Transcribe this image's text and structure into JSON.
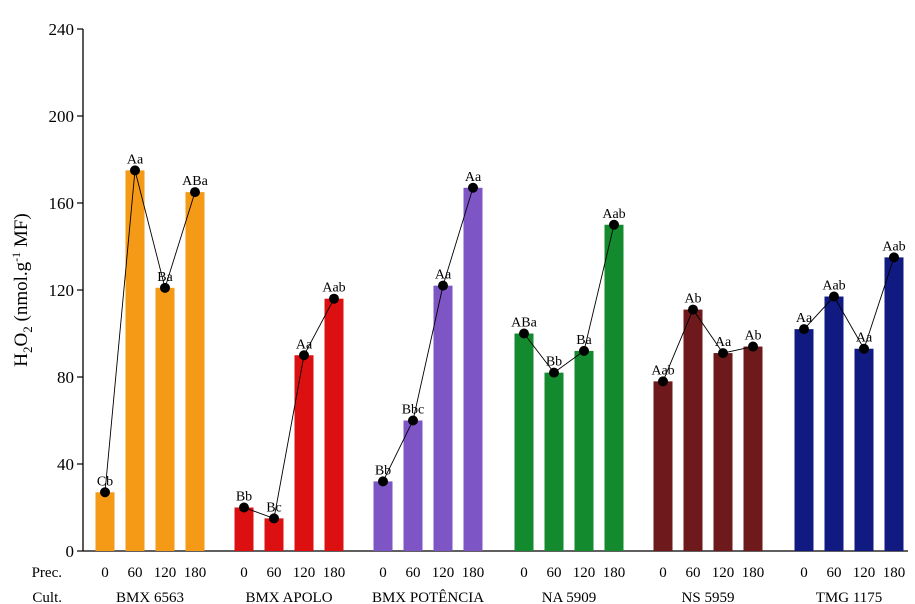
{
  "chart_data": {
    "type": "bar",
    "ylabel": {
      "main": "H",
      "sub1": "2",
      "mid": "O",
      "sub2": "2",
      "rest": " (nmol.g",
      "sup": "-1",
      "tail": " MF)"
    },
    "ylim": [
      0,
      240
    ],
    "yticks": [
      "0",
      "40",
      "80",
      "120",
      "160",
      "200",
      "240"
    ],
    "grid": false,
    "row_labels": {
      "prec": "Prec.",
      "cult": "Cult."
    },
    "prec_levels": [
      "0",
      "60",
      "120",
      "180"
    ],
    "groups": [
      {
        "name": "BMX 6563",
        "color": "#F59A16",
        "values": [
          27,
          175,
          121,
          165
        ],
        "labels": [
          "Cb",
          "Aa",
          "Ba",
          "ABa"
        ]
      },
      {
        "name": "BMX APOLO",
        "color": "#DC1010",
        "values": [
          20,
          15,
          90,
          116
        ],
        "labels": [
          "Bb",
          "Bc",
          "Aa",
          "Aab"
        ]
      },
      {
        "name": "BMX POTÊNCIA",
        "color": "#7E55C4",
        "values": [
          32,
          60,
          122,
          167
        ],
        "labels": [
          "Bb",
          "Bbc",
          "Aa",
          "Aa"
        ]
      },
      {
        "name": "NA 5909",
        "color": "#138A2D",
        "values": [
          100,
          82,
          92,
          150
        ],
        "labels": [
          "ABa",
          "Bb",
          "Ba",
          "Aab"
        ]
      },
      {
        "name": "NS 5959",
        "color": "#6E1A1C",
        "values": [
          78,
          111,
          91,
          94
        ],
        "labels": [
          "Aab",
          "Ab",
          "Aa",
          "Ab"
        ]
      },
      {
        "name": "TMG 1175",
        "color": "#101A80",
        "values": [
          102,
          117,
          93,
          135
        ],
        "labels": [
          "Aa",
          "Aab",
          "Aa",
          "Aab"
        ]
      }
    ]
  }
}
